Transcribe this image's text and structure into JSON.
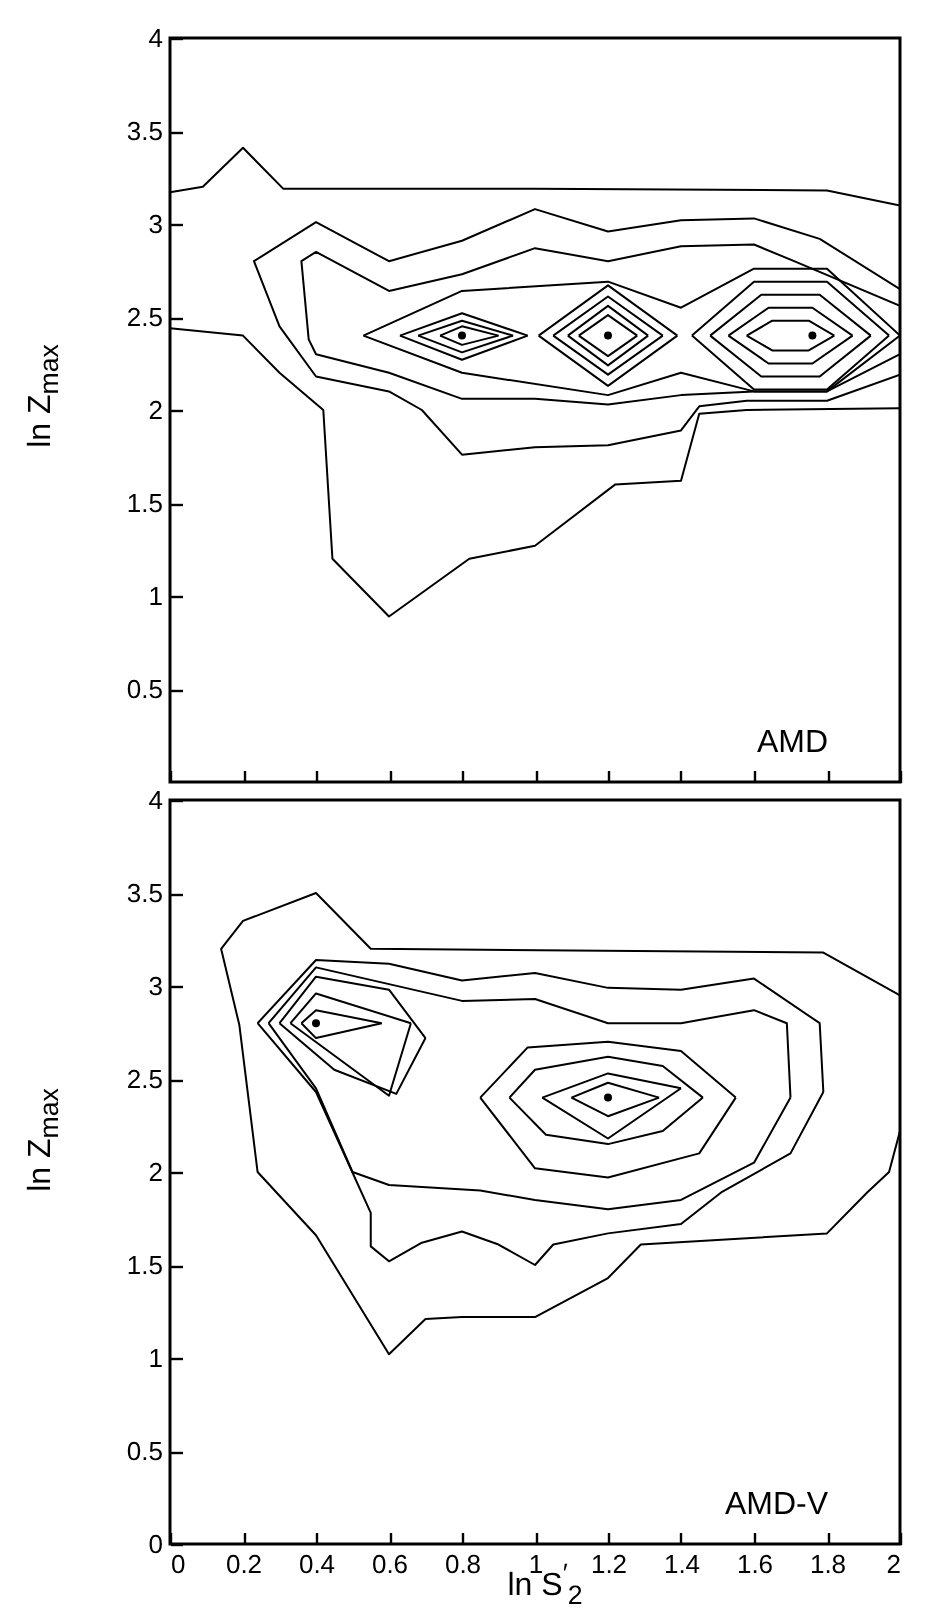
{
  "chart_data": [
    {
      "type": "line",
      "ylabel": "ln Z$_{max}$",
      "annotations": [
        "AMD"
      ],
      "xlim": [
        0,
        2
      ],
      "ylim": [
        0,
        4
      ],
      "xticks": [
        0,
        0.2,
        0.4,
        0.6,
        0.8,
        1,
        1.2,
        1.4,
        1.6,
        1.8,
        2
      ],
      "yticks": [
        0.5,
        1,
        1.5,
        2,
        2.5,
        3,
        3.5,
        4
      ],
      "tick_labels": "y",
      "series": [
        {
          "color": "#000000",
          "x": [
            0,
            0.09,
            0.2,
            0.31,
            1.0,
            1.8,
            2
          ],
          "values": [
            3.17,
            3.2,
            3.41,
            3.19,
            3.19,
            3.18,
            3.1
          ]
        },
        {
          "color": "#000000",
          "x": [
            0,
            0.2,
            0.3,
            0.42,
            0.445,
            0.6,
            0.82,
            1.0,
            1.22,
            1.4,
            1.45,
            1.58,
            2
          ],
          "values": [
            2.44,
            2.4,
            2.2,
            2.0,
            1.2,
            0.89,
            1.2,
            1.27,
            1.6,
            1.62,
            1.98,
            2.0,
            2.01
          ]
        },
        {
          "color": "#000000",
          "x": [
            2,
            1.8,
            1.58,
            1.45,
            1.4,
            1.2,
            1.0,
            0.8,
            0.69,
            0.6,
            0.4,
            0.3,
            0.23,
            0.4,
            0.6,
            0.8,
            1.0,
            1.2,
            1.4,
            1.6,
            1.78,
            2
          ],
          "values": [
            2.19,
            2.05,
            2.05,
            2.02,
            1.89,
            1.81,
            1.8,
            1.76,
            2.0,
            2.1,
            2.18,
            2.45,
            2.8,
            3.01,
            2.8,
            2.91,
            3.08,
            2.96,
            3.02,
            3.03,
            2.92,
            2.65
          ]
        },
        {
          "color": "#000000",
          "x": [
            2,
            1.8,
            1.6,
            1.4,
            1.2,
            1.0,
            0.8,
            0.6,
            0.4,
            0.38,
            0.36,
            0.4,
            0.6,
            0.8,
            1.0,
            1.2,
            1.4,
            1.6,
            1.71,
            2
          ],
          "values": [
            2.3,
            2.1,
            2.1,
            2.08,
            2.03,
            2.06,
            2.06,
            2.2,
            2.3,
            2.38,
            2.8,
            2.85,
            2.64,
            2.73,
            2.87,
            2.8,
            2.88,
            2.89,
            2.8,
            2.56
          ]
        },
        {
          "color": "#000000",
          "x": [
            0.53,
            0.8,
            1.2,
            1.4,
            1.6,
            1.8,
            2.0
          ],
          "values": [
            2.4,
            2.64,
            2.69,
            2.55,
            2.76,
            2.76,
            2.4
          ]
        },
        {
          "color": "#000000",
          "x": [
            0.53,
            0.8,
            1.2,
            1.4,
            1.6,
            1.8,
            2.0
          ],
          "values": [
            2.4,
            2.2,
            2.08,
            2.2,
            2.1,
            2.1,
            2.4
          ]
        },
        {
          "color": "#000000",
          "x": [
            0.63,
            0.8,
            0.98
          ],
          "values": [
            2.4,
            2.52,
            2.4
          ]
        },
        {
          "color": "#000000",
          "x": [
            0.63,
            0.8,
            0.98
          ],
          "values": [
            2.4,
            2.27,
            2.4
          ]
        },
        {
          "color": "#000000",
          "x": [
            0.68,
            0.8,
            0.94
          ],
          "values": [
            2.4,
            2.48,
            2.4
          ]
        },
        {
          "color": "#000000",
          "x": [
            0.68,
            0.8,
            0.94
          ],
          "values": [
            2.4,
            2.31,
            2.4
          ]
        },
        {
          "color": "#000000",
          "x": [
            0.74,
            0.8,
            0.9
          ],
          "values": [
            2.4,
            2.45,
            2.4
          ]
        },
        {
          "color": "#000000",
          "x": [
            0.74,
            0.8,
            0.9
          ],
          "values": [
            2.4,
            2.35,
            2.4
          ]
        },
        {
          "color": "#000000",
          "x": [
            1.01,
            1.2,
            1.39
          ],
          "values": [
            2.4,
            2.67,
            2.4
          ]
        },
        {
          "color": "#000000",
          "x": [
            1.01,
            1.2,
            1.39
          ],
          "values": [
            2.4,
            2.13,
            2.4
          ]
        },
        {
          "color": "#000000",
          "x": [
            1.05,
            1.2,
            1.35
          ],
          "values": [
            2.4,
            2.61,
            2.4
          ]
        },
        {
          "color": "#000000",
          "x": [
            1.05,
            1.2,
            1.35
          ],
          "values": [
            2.4,
            2.19,
            2.4
          ]
        },
        {
          "color": "#000000",
          "x": [
            1.09,
            1.2,
            1.31
          ],
          "values": [
            2.4,
            2.56,
            2.4
          ]
        },
        {
          "color": "#000000",
          "x": [
            1.09,
            1.2,
            1.31
          ],
          "values": [
            2.4,
            2.24,
            2.4
          ]
        },
        {
          "color": "#000000",
          "x": [
            1.12,
            1.2,
            1.28
          ],
          "values": [
            2.4,
            2.51,
            2.4
          ]
        },
        {
          "color": "#000000",
          "x": [
            1.12,
            1.2,
            1.28
          ],
          "values": [
            2.4,
            2.29,
            2.4
          ]
        },
        {
          "color": "#000000",
          "x": [
            1.43,
            1.6,
            1.8,
            1.97
          ],
          "values": [
            2.4,
            2.69,
            2.69,
            2.4
          ]
        },
        {
          "color": "#000000",
          "x": [
            1.43,
            1.6,
            1.8,
            1.97
          ],
          "values": [
            2.4,
            2.11,
            2.11,
            2.4
          ]
        },
        {
          "color": "#000000",
          "x": [
            1.48,
            1.62,
            1.78,
            1.92
          ],
          "values": [
            2.4,
            2.62,
            2.62,
            2.4
          ]
        },
        {
          "color": "#000000",
          "x": [
            1.48,
            1.62,
            1.78,
            1.92
          ],
          "values": [
            2.4,
            2.18,
            2.18,
            2.4
          ]
        },
        {
          "color": "#000000",
          "x": [
            1.53,
            1.64,
            1.76,
            1.87
          ],
          "values": [
            2.4,
            2.55,
            2.55,
            2.4
          ]
        },
        {
          "color": "#000000",
          "x": [
            1.53,
            1.64,
            1.76,
            1.87
          ],
          "values": [
            2.4,
            2.25,
            2.25,
            2.4
          ]
        },
        {
          "color": "#000000",
          "x": [
            1.58,
            1.65,
            1.75,
            1.82
          ],
          "values": [
            2.4,
            2.48,
            2.48,
            2.4
          ]
        },
        {
          "color": "#000000",
          "x": [
            1.58,
            1.65,
            1.75,
            1.82
          ],
          "values": [
            2.4,
            2.32,
            2.32,
            2.4
          ]
        },
        {
          "type": "scatter",
          "color": "#000000",
          "x": [
            0.8,
            1.2,
            1.76
          ],
          "values": [
            2.4,
            2.4,
            2.4
          ]
        }
      ]
    },
    {
      "type": "line",
      "xlabel": "ln S$^{′}$$_{2}$",
      "ylabel": "ln Z$_{max}$",
      "annotations": [
        "AMD-V"
      ],
      "xlim": [
        0,
        2
      ],
      "ylim": [
        0,
        4
      ],
      "xticks": [
        0,
        0.2,
        0.4,
        0.6,
        0.8,
        1,
        1.2,
        1.4,
        1.6,
        1.8,
        2
      ],
      "yticks": [
        0,
        0.5,
        1,
        1.5,
        2,
        2.5,
        3,
        3.5,
        4
      ],
      "series": [
        {
          "color": "#000000",
          "x": [
            2,
            1.97,
            1.91,
            1.8,
            1.29,
            1.2,
            1.0,
            0.8,
            0.7,
            0.6,
            0.4,
            0.24,
            0.19,
            0.14,
            0.2,
            0.4,
            0.55,
            1.79,
            2
          ],
          "values": [
            2.22,
            2.0,
            1.89,
            1.67,
            1.61,
            1.43,
            1.22,
            1.22,
            1.21,
            1.02,
            1.66,
            2.0,
            2.79,
            3.2,
            3.35,
            3.5,
            3.2,
            3.18,
            2.95
          ]
        },
        {
          "color": "#000000",
          "x": [
            0.24,
            0.4,
            0.6,
            0.8,
            1.0,
            1.2,
            1.4,
            1.6,
            1.78,
            1.79
          ],
          "values": [
            2.8,
            3.14,
            3.12,
            3.03,
            3.07,
            2.99,
            2.98,
            3.04,
            2.8,
            2.43
          ]
        },
        {
          "color": "#000000",
          "x": [
            0.24,
            0.4,
            0.55,
            0.55,
            0.6,
            0.69,
            0.8,
            0.9,
            1.0,
            1.05,
            1.2,
            1.4,
            1.51,
            1.7,
            1.79
          ],
          "values": [
            2.8,
            2.43,
            1.78,
            1.6,
            1.52,
            1.62,
            1.68,
            1.61,
            1.5,
            1.61,
            1.67,
            1.72,
            1.89,
            2.1,
            2.43
          ]
        },
        {
          "color": "#000000",
          "x": [
            0.27,
            0.4,
            0.6,
            0.8,
            1.0,
            1.2,
            1.4,
            1.6,
            1.69,
            1.7
          ],
          "values": [
            2.8,
            3.1,
            3.01,
            2.92,
            2.93,
            2.8,
            2.8,
            2.87,
            2.8,
            2.4
          ]
        },
        {
          "color": "#000000",
          "x": [
            0.27,
            0.4,
            0.5,
            0.6,
            0.85,
            1.0,
            1.2,
            1.4,
            1.6,
            1.7
          ],
          "values": [
            2.8,
            2.45,
            2.0,
            1.93,
            1.9,
            1.85,
            1.8,
            1.85,
            2.05,
            2.4
          ]
        },
        {
          "color": "#000000",
          "x": [
            0.3,
            0.4,
            0.6,
            0.7
          ],
          "values": [
            2.8,
            3.05,
            2.98,
            2.72
          ]
        },
        {
          "color": "#000000",
          "x": [
            0.3,
            0.45,
            0.62,
            0.7
          ],
          "values": [
            2.8,
            2.55,
            2.42,
            2.72
          ]
        },
        {
          "color": "#000000",
          "x": [
            0.33,
            0.4,
            0.66
          ],
          "values": [
            2.8,
            2.96,
            2.8
          ]
        },
        {
          "color": "#000000",
          "x": [
            0.33,
            0.6,
            0.66
          ],
          "values": [
            2.8,
            2.41,
            2.8
          ]
        },
        {
          "color": "#000000",
          "x": [
            0.36,
            0.4,
            0.58
          ],
          "values": [
            2.8,
            2.87,
            2.8
          ]
        },
        {
          "color": "#000000",
          "x": [
            0.36,
            0.4,
            0.58
          ],
          "values": [
            2.8,
            2.72,
            2.8
          ]
        },
        {
          "color": "#000000",
          "x": [
            0.85,
            0.98,
            1.2,
            1.4,
            1.55
          ],
          "values": [
            2.4,
            2.67,
            2.7,
            2.65,
            2.4
          ]
        },
        {
          "color": "#000000",
          "x": [
            0.85,
            1.0,
            1.2,
            1.45,
            1.55
          ],
          "values": [
            2.4,
            2.02,
            1.97,
            2.1,
            2.4
          ]
        },
        {
          "color": "#000000",
          "x": [
            0.93,
            1.0,
            1.2,
            1.35,
            1.46
          ],
          "values": [
            2.4,
            2.55,
            2.62,
            2.57,
            2.4
          ]
        },
        {
          "color": "#000000",
          "x": [
            0.93,
            1.03,
            1.2,
            1.35,
            1.46
          ],
          "values": [
            2.4,
            2.2,
            2.15,
            2.22,
            2.4
          ]
        },
        {
          "color": "#000000",
          "x": [
            1.02,
            1.2,
            1.4
          ],
          "values": [
            2.4,
            2.53,
            2.45
          ]
        },
        {
          "color": "#000000",
          "x": [
            1.02,
            1.2,
            1.4
          ],
          "values": [
            2.4,
            2.18,
            2.45
          ]
        },
        {
          "color": "#000000",
          "x": [
            1.1,
            1.2,
            1.34
          ],
          "values": [
            2.4,
            2.48,
            2.4
          ]
        },
        {
          "color": "#000000",
          "x": [
            1.1,
            1.2,
            1.34
          ],
          "values": [
            2.4,
            2.3,
            2.4
          ]
        },
        {
          "type": "scatter",
          "color": "#000000",
          "x": [
            0.4,
            1.2
          ],
          "values": [
            2.8,
            2.4
          ]
        }
      ]
    }
  ]
}
